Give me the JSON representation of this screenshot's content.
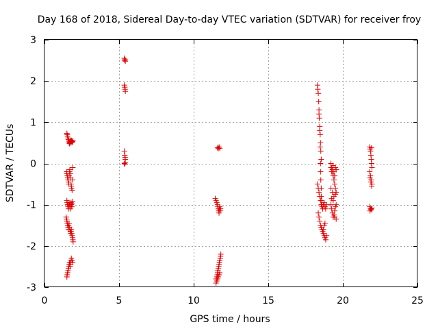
{
  "chart_data": {
    "type": "scatter",
    "title": "Day 168 of 2018, Sidereal Day-to-day VTEC variation (SDTVAR) for receiver froy",
    "xlabel": "GPS time / hours",
    "ylabel": "SDTVAR / TECUs",
    "xlim": [
      0,
      25
    ],
    "ylim": [
      -3,
      3
    ],
    "xticks": [
      0,
      5,
      10,
      15,
      20,
      25
    ],
    "yticks": [
      -3,
      -2,
      -1,
      0,
      1,
      2,
      3
    ],
    "xtick_labels": [
      "0",
      "5",
      "10",
      "15",
      "20",
      "25"
    ],
    "ytick_labels": [
      "-3",
      "-2",
      "-1",
      "0",
      "1",
      "2",
      "3"
    ],
    "grid": true,
    "marker": "+",
    "color": "#e00000",
    "series": [
      {
        "name": "SDTVAR",
        "x": [
          1.5,
          1.52,
          1.55,
          1.58,
          1.6,
          1.63,
          1.65,
          1.68,
          1.7,
          1.72,
          1.75,
          1.78,
          1.8,
          1.82,
          1.85,
          1.88,
          1.9,
          1.48,
          1.5,
          1.53,
          1.55,
          1.58,
          1.6,
          1.62,
          1.65,
          1.68,
          1.7,
          1.73,
          1.75,
          1.78,
          1.8,
          1.82,
          1.85,
          1.88,
          1.9,
          1.5,
          1.52,
          1.55,
          1.58,
          1.6,
          1.62,
          1.65,
          1.68,
          1.7,
          1.72,
          1.75,
          1.78,
          1.8,
          1.83,
          1.85,
          1.88,
          1.45,
          1.48,
          1.5,
          1.53,
          1.55,
          1.58,
          1.6,
          1.62,
          1.65,
          1.68,
          1.7,
          1.73,
          1.75,
          1.78,
          1.8,
          1.82,
          1.85,
          1.88,
          1.9,
          1.92,
          1.5,
          1.52,
          1.55,
          1.58,
          1.6,
          1.63,
          1.65,
          1.68,
          1.7,
          1.72,
          1.75,
          1.78,
          1.8,
          1.85,
          1.9,
          5.35,
          5.38,
          5.4,
          5.42,
          5.35,
          5.38,
          5.4,
          5.42,
          5.35,
          5.38,
          5.4,
          5.42,
          5.36,
          5.39,
          5.41,
          11.45,
          11.5,
          11.55,
          11.6,
          11.62,
          11.65,
          11.68,
          11.7,
          11.72,
          11.75,
          11.78,
          11.8,
          11.5,
          11.55,
          11.58,
          11.6,
          11.62,
          11.65,
          11.68,
          11.7,
          11.72,
          11.75,
          11.78,
          11.8,
          11.82,
          11.5,
          11.55,
          11.6,
          11.65,
          11.7,
          11.75,
          11.6,
          11.65,
          11.7,
          11.75,
          18.3,
          18.32,
          18.35,
          18.38,
          18.4,
          18.42,
          18.45,
          18.48,
          18.5,
          18.52,
          18.55,
          18.4,
          18.45,
          18.48,
          18.5,
          18.5,
          18.52,
          18.55,
          18.55,
          18.58,
          18.6,
          18.3,
          18.35,
          18.4,
          18.45,
          18.5,
          18.55,
          18.6,
          18.65,
          18.7,
          18.75,
          18.8,
          18.85,
          18.9,
          18.35,
          18.4,
          18.45,
          18.5,
          18.55,
          18.6,
          18.65,
          18.7,
          18.75,
          18.8,
          18.85,
          18.9,
          18.7,
          18.75,
          18.8,
          19.2,
          19.25,
          19.3,
          19.35,
          19.4,
          19.45,
          19.5,
          19.55,
          19.2,
          19.25,
          19.3,
          19.35,
          19.4,
          19.45,
          19.5,
          19.55,
          19.2,
          19.25,
          19.3,
          19.35,
          19.4,
          19.45,
          19.5,
          19.55,
          19.2,
          19.3,
          19.4,
          19.5,
          19.25,
          19.35,
          19.45,
          19.55,
          21.8,
          21.82,
          21.85,
          21.88,
          21.9,
          21.92,
          21.95,
          21.8,
          21.85,
          21.9,
          21.95,
          21.82,
          21.88,
          21.93,
          21.8,
          21.85,
          21.9,
          21.95,
          21.82,
          21.88,
          21.92
        ],
        "y": [
          0.73,
          0.7,
          0.66,
          0.62,
          0.58,
          0.54,
          0.5,
          0.48,
          0.52,
          0.55,
          0.53,
          0.5,
          0.56,
          0.54,
          0.51,
          0.53,
          0.55,
          -0.2,
          -0.25,
          -0.3,
          -0.35,
          -0.4,
          -0.45,
          -0.5,
          -0.3,
          -0.2,
          -0.15,
          -0.25,
          -0.35,
          -0.5,
          -0.55,
          -0.6,
          -0.65,
          -0.4,
          -0.1,
          -0.9,
          -0.95,
          -1.0,
          -1.05,
          -1.1,
          -1.0,
          -0.95,
          -1.0,
          -1.05,
          -1.1,
          -1.0,
          -0.95,
          -1.0,
          -1.05,
          -0.98,
          -0.92,
          -1.3,
          -1.35,
          -1.4,
          -1.45,
          -1.5,
          -1.55,
          -1.6,
          -1.5,
          -1.45,
          -1.55,
          -1.6,
          -1.65,
          -1.7,
          -1.65,
          -1.6,
          -1.7,
          -1.75,
          -1.8,
          -1.85,
          -1.9,
          -2.75,
          -2.7,
          -2.65,
          -2.6,
          -2.55,
          -2.5,
          -2.45,
          -2.4,
          -2.45,
          -2.5,
          -2.4,
          -2.35,
          -2.3,
          -2.35,
          -2.4,
          2.55,
          2.5,
          2.52,
          2.48,
          1.9,
          1.85,
          1.8,
          1.75,
          0.3,
          0.2,
          0.15,
          0.1,
          0.0,
          -0.02,
          0.02,
          -0.85,
          -0.9,
          -0.95,
          -1.0,
          -1.05,
          -1.1,
          -1.15,
          -1.2,
          -1.1,
          -1.05,
          -1.15,
          -1.1,
          -2.8,
          -2.75,
          -2.7,
          -2.65,
          -2.6,
          -2.55,
          -2.5,
          -2.45,
          -2.4,
          -2.35,
          -2.3,
          -2.25,
          -2.2,
          -2.9,
          -2.85,
          -2.8,
          -2.75,
          -2.7,
          -2.65,
          0.38,
          0.36,
          0.4,
          0.37,
          1.9,
          1.8,
          1.7,
          1.5,
          1.3,
          1.1,
          0.9,
          0.7,
          0.5,
          0.3,
          0.1,
          1.2,
          0.8,
          0.4,
          0.0,
          -0.2,
          -0.4,
          -0.6,
          -0.8,
          -0.9,
          -1.0,
          -0.5,
          -0.6,
          -0.7,
          -0.8,
          -0.9,
          -1.0,
          -1.05,
          -1.1,
          -1.0,
          -0.95,
          -1.05,
          -1.1,
          -1.0,
          -1.2,
          -1.3,
          -1.4,
          -1.5,
          -1.55,
          -1.6,
          -1.65,
          -1.7,
          -1.75,
          -1.8,
          -1.85,
          -1.75,
          -1.6,
          -1.5,
          -1.45,
          0.0,
          -0.1,
          -0.2,
          -0.3,
          -0.4,
          -0.5,
          -0.6,
          -0.7,
          -0.1,
          -0.2,
          -0.15,
          -0.05,
          -0.2,
          -0.3,
          -0.1,
          -0.15,
          -1.0,
          -1.1,
          -1.2,
          -1.3,
          -1.25,
          -1.15,
          -1.05,
          -1.0,
          -0.6,
          -0.7,
          -0.8,
          -0.75,
          -0.85,
          -0.9,
          -1.3,
          -1.35,
          0.4,
          0.35,
          0.3,
          0.2,
          0.1,
          0.0,
          -0.1,
          -0.2,
          -0.3,
          -0.4,
          -0.5,
          -0.35,
          -0.45,
          -0.55,
          -1.05,
          -1.1,
          -1.12,
          -1.08,
          -1.15,
          -1.1,
          0.38
        ]
      }
    ]
  }
}
